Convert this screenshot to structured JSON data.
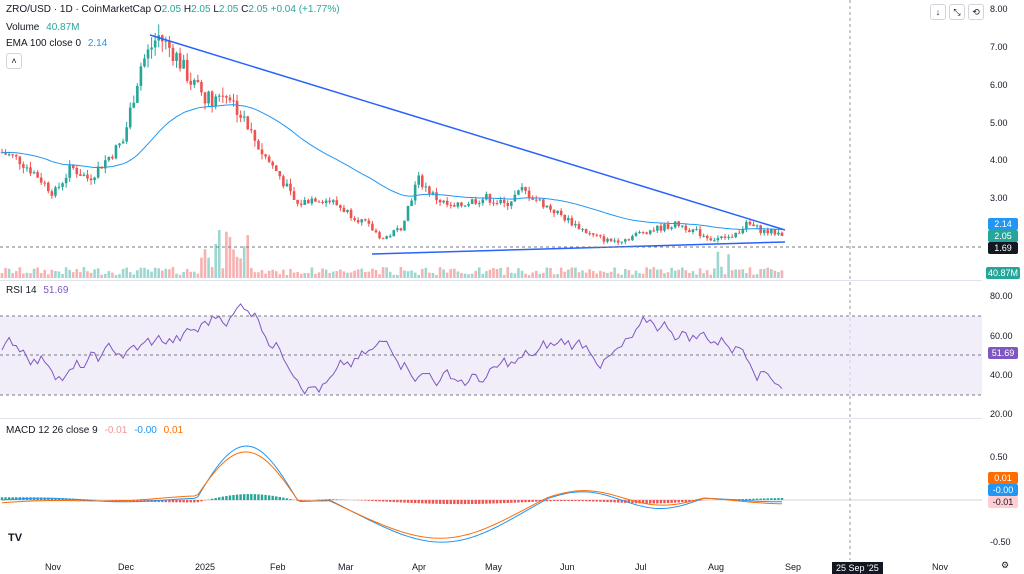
{
  "header": {
    "symbol": "ZRO/USD · 1D · CoinMarketCap",
    "ohlc": [
      {
        "k": "O",
        "v": "2.05"
      },
      {
        "k": "H",
        "v": "2.05"
      },
      {
        "k": "L",
        "v": "2.05"
      },
      {
        "k": "C",
        "v": "2.05"
      }
    ],
    "change": "+0.04 (+1.77%)",
    "volume_label": "Volume",
    "volume_value": "40.87M",
    "ema_label": "EMA 100 close 0",
    "ema_value": "2.14"
  },
  "colors": {
    "up": "#26a69a",
    "down": "#ef5350",
    "ema": "#2196f3",
    "trend": "#2962ff",
    "rsi": "#7e57c2",
    "macd": "#2196f3",
    "signal": "#ff6d00"
  },
  "price_axis": [
    "8.00",
    "7.00",
    "6.00",
    "5.00",
    "4.00",
    "3.00"
  ],
  "price_tags": {
    "ema": "2.14",
    "close": "2.05",
    "support": "1.69",
    "volume": "40.87M"
  },
  "rsi": {
    "label": "RSI 14",
    "value": "51.69",
    "axis": [
      "80.00",
      "60.00",
      "40.00",
      "20.00"
    ]
  },
  "macd": {
    "label": "MACD 12 26 close 9",
    "hist": "-0.01",
    "macd": "-0.00",
    "signal": "0.01",
    "axis": [
      "0.50",
      "0.00",
      "-0.50"
    ],
    "tags": {
      "signal": "0.01",
      "macd": "-0.00",
      "hist": "-0.01"
    }
  },
  "dates": [
    "Nov",
    "Dec",
    "2025",
    "Feb",
    "Mar",
    "Apr",
    "May",
    "Jun",
    "Jul",
    "Aug",
    "Sep",
    "25 Sep '25",
    "Nov"
  ],
  "toolbar": {
    "collapse": "˄",
    "down": "↓",
    "expand": "⤡",
    "reset": "⟲",
    "logo": "TV",
    "settings": "⚙"
  },
  "chart_data": {
    "type": "candlestick",
    "ylim": [
      1.4,
      8.1
    ],
    "approx_close": [
      4.2,
      4.0,
      3.6,
      3.1,
      3.8,
      3.5,
      4.0,
      4.5,
      6.5,
      7.3,
      6.8,
      6.0,
      5.6,
      5.8,
      5.0,
      4.2,
      3.6,
      2.8,
      3.0,
      2.9,
      2.6,
      2.3,
      1.9,
      2.2,
      3.5,
      3.0,
      2.7,
      2.9,
      3.0,
      2.8,
      3.2,
      2.9,
      2.6,
      2.3,
      2.0,
      1.85,
      1.9,
      2.1,
      2.2,
      2.3,
      2.1,
      1.9,
      1.95,
      2.3,
      2.1,
      2.05
    ]
  }
}
